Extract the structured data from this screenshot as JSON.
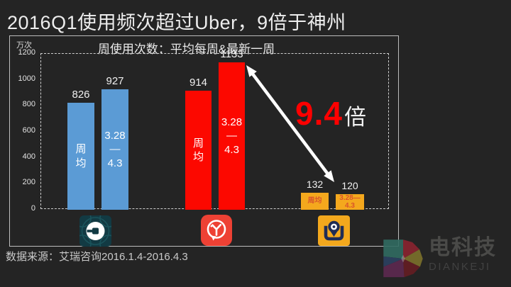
{
  "page": {
    "title": "2016Q1使用频次超过Uber，9倍于神州",
    "source": "数据来源：艾瑞咨询2016.1.4-2016.4.3"
  },
  "brand": {
    "logo": "diankeji-d-logo",
    "name_cn": "电科技",
    "name_en": "DIANKEJI"
  },
  "chart_data": {
    "type": "bar",
    "title": "周使用次数：平均每周&最新一周",
    "unit_label": "万次",
    "ylim": [
      0,
      1200
    ],
    "yticks": [
      1200,
      1000,
      800,
      600,
      400,
      200,
      0
    ],
    "grid": false,
    "legend": false,
    "categories": [
      "周均",
      "3.28—4.3"
    ],
    "groups": [
      {
        "name": "Uber",
        "icon": "uber-app-icon",
        "color": "#5b9bd5",
        "bars": [
          {
            "category": "周均",
            "value": 826,
            "value_label": "826",
            "inner_lines": [
              "周",
              "均"
            ]
          },
          {
            "category": "3.28—4.3",
            "value": 927,
            "value_label": "927",
            "inner_lines": [
              "3.28",
              "—",
              "4.3"
            ]
          }
        ]
      },
      {
        "name": "滴滴出行",
        "icon": "didi-app-icon",
        "color": "#fc0800",
        "bars": [
          {
            "category": "周均",
            "value": 914,
            "value_label": "914",
            "inner_lines": [
              "周",
              "均"
            ]
          },
          {
            "category": "3.28—4.3",
            "value": 1133,
            "value_label": "1133",
            "inner_lines": [
              "3.28",
              "—",
              "4.3"
            ]
          }
        ]
      },
      {
        "name": "神州专车",
        "icon": "shenzhou-app-icon",
        "color": "#f4a81d",
        "bars": [
          {
            "category": "周均",
            "value": 132,
            "value_label": "132",
            "inner_lines": [
              "周均"
            ]
          },
          {
            "category": "3.28—4.3",
            "value": 120,
            "value_label": "120",
            "inner_lines": [
              "3.28—",
              "4.3"
            ]
          }
        ]
      }
    ],
    "annotation": {
      "value": "9.4",
      "suffix": "倍",
      "value_color": "#fe0000"
    }
  }
}
